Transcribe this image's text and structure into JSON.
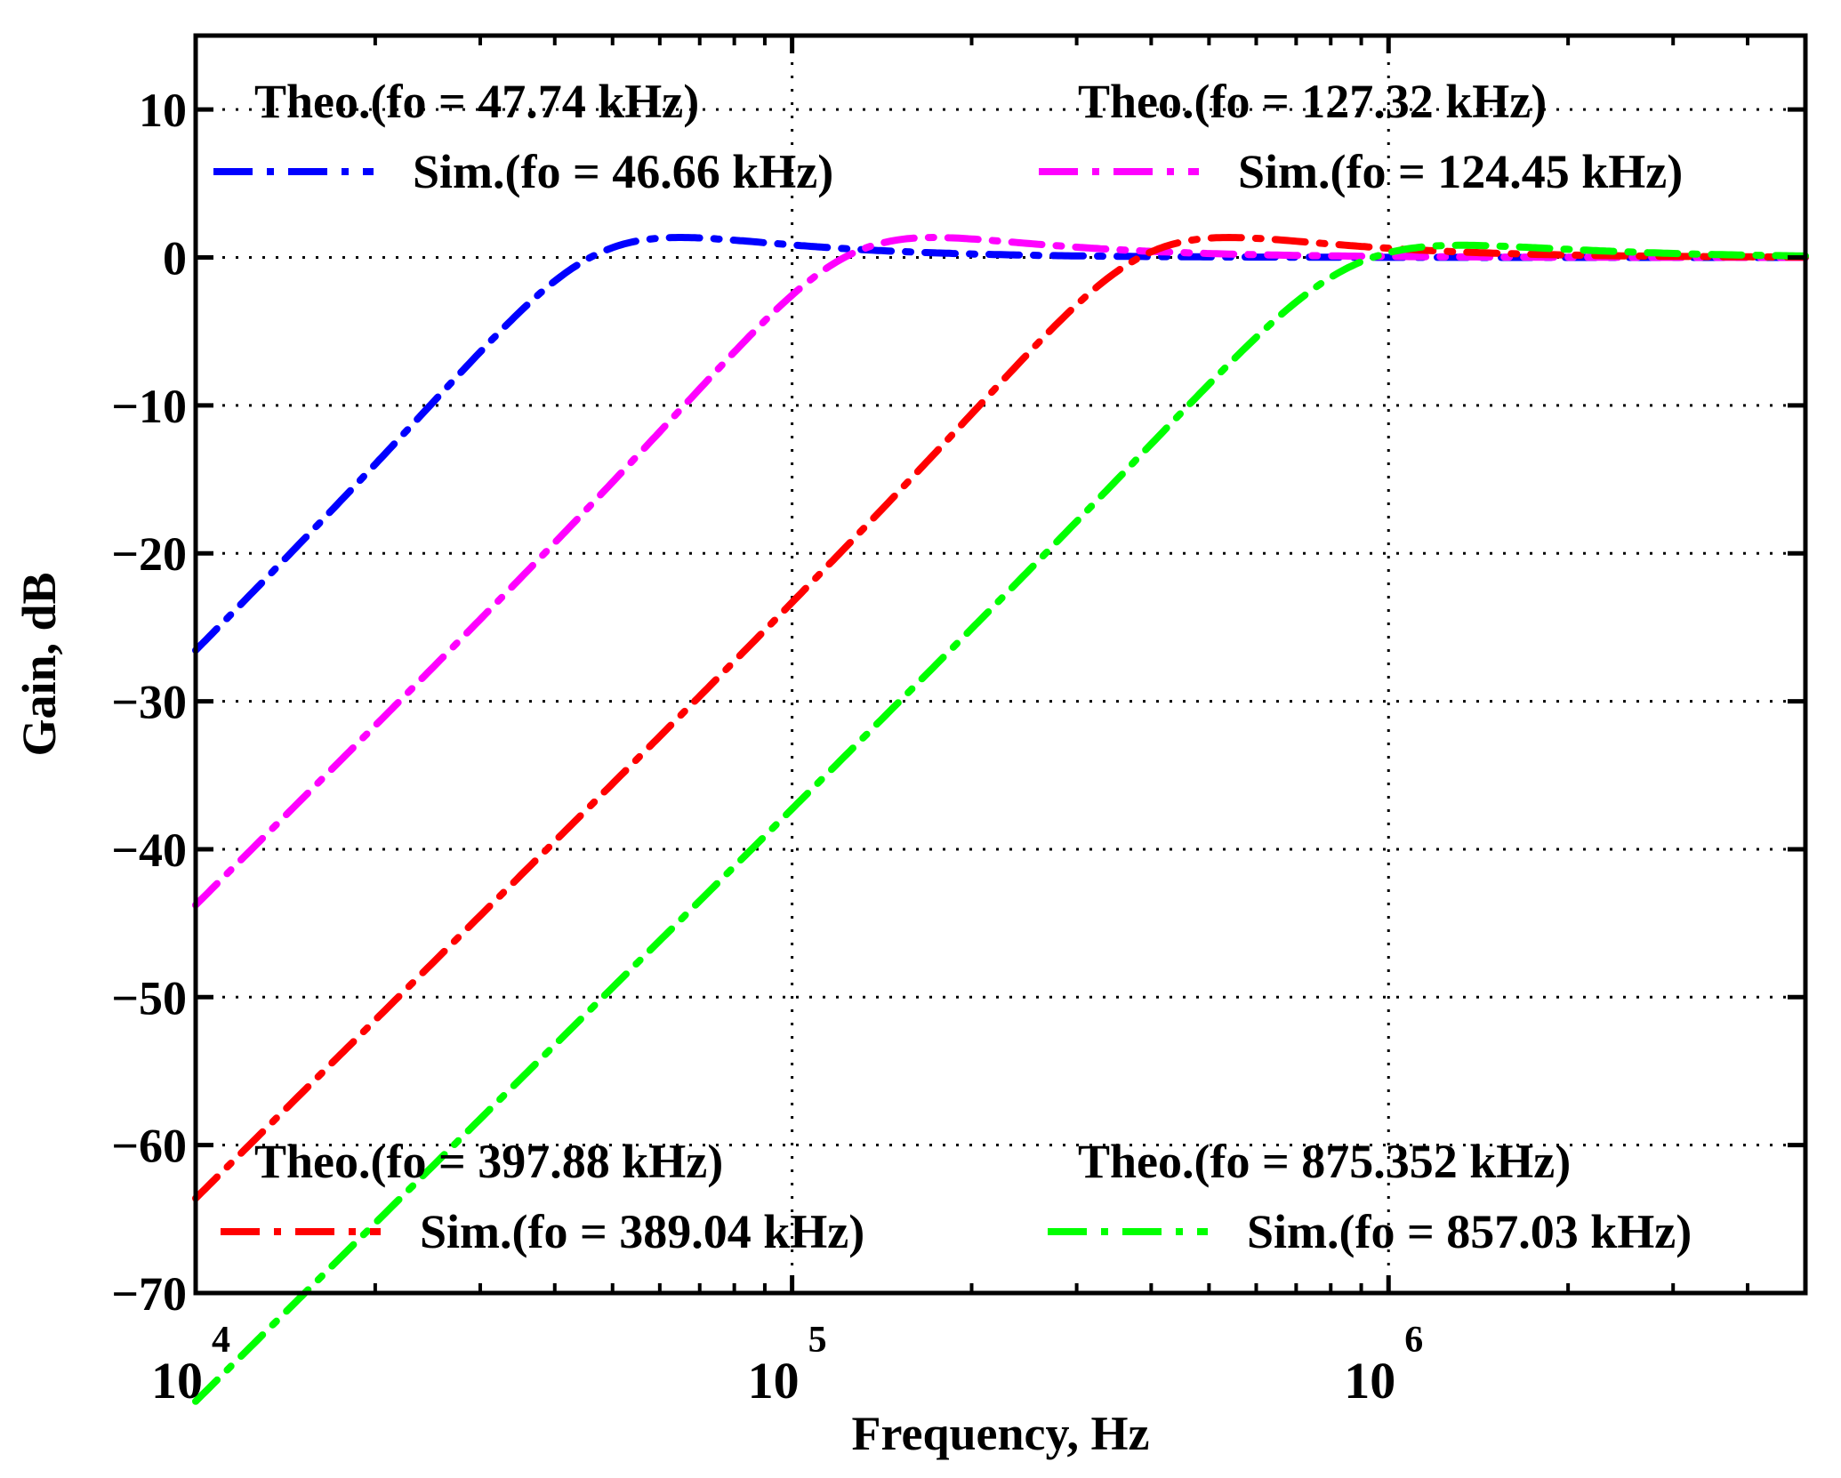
{
  "chart_data": {
    "type": "line",
    "xscale": "log",
    "xlabel": "Frequency, Hz",
    "ylabel": "Gain, dB",
    "xlim": [
      10000,
      5000000
    ],
    "ylim": [
      -70,
      15
    ],
    "grid": true,
    "x_ticks": [
      {
        "value": 10000,
        "base": "10",
        "exp": "4"
      },
      {
        "value": 100000,
        "base": "10",
        "exp": "5"
      },
      {
        "value": 1000000,
        "base": "10",
        "exp": "6"
      }
    ],
    "y_ticks": [
      {
        "value": 10,
        "label": "10"
      },
      {
        "value": 0,
        "label": "0"
      },
      {
        "value": -10,
        "label": "−10"
      },
      {
        "value": -20,
        "label": "−20"
      },
      {
        "value": -30,
        "label": "−30"
      },
      {
        "value": -40,
        "label": "−40"
      },
      {
        "value": -50,
        "label": "−50"
      },
      {
        "value": -60,
        "label": "−60"
      },
      {
        "value": -70,
        "label": "−70"
      }
    ],
    "series": [
      {
        "name": "Sim.(fo = 46.66 kHz)",
        "theo_label": "Theo.(fo = 47.74 kHz)",
        "color": "#0000ff",
        "fo_sim": 46660,
        "peak_db": 1.2,
        "legend_position": "top-left"
      },
      {
        "name": "Sim.(fo = 124.45 kHz)",
        "theo_label": "Theo.(fo = 127.32 kHz)",
        "color": "#ff00ff",
        "fo_sim": 124450,
        "peak_db": 1.2,
        "legend_position": "top-right"
      },
      {
        "name": "Sim.(fo = 389.04 kHz)",
        "theo_label": "Theo.(fo = 397.88 kHz)",
        "color": "#ff0000",
        "fo_sim": 389040,
        "peak_db": 1.2,
        "legend_position": "bottom-left"
      },
      {
        "name": "Sim.(fo = 857.03 kHz)",
        "theo_label": "Theo.(fo = 875.352 kHz)",
        "color": "#00ff00",
        "fo_sim": 857030,
        "peak_db": 1.5,
        "legend_position": "bottom-right"
      }
    ]
  }
}
